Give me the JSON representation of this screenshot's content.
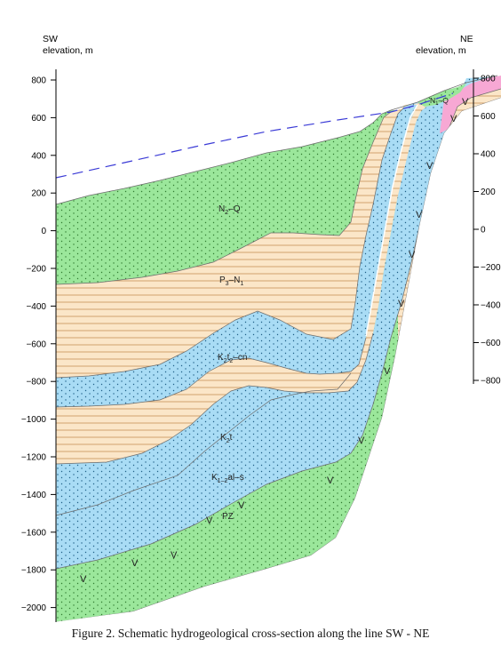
{
  "left_header": {
    "dir": "SW",
    "label": "elevation,  m"
  },
  "right_header": {
    "dir": "NE",
    "label": "elevation,  m"
  },
  "left_ticks": [
    "800",
    "600",
    "400",
    "200",
    "0",
    "−200",
    "−400",
    "−600",
    "−800",
    "−1000",
    "−1200",
    "−1400",
    "−1600",
    "−1800",
    "−2000"
  ],
  "right_ticks": [
    "800",
    "600",
    "400",
    "200",
    "0",
    "−200",
    "−400",
    "−600",
    "−800"
  ],
  "layers": [
    {
      "id": "n2q",
      "base": "N",
      "sub": "2",
      "rest": "–Q",
      "color": "#9be79b"
    },
    {
      "id": "p3n1",
      "base": "P",
      "sub": "3",
      "rest": "–N",
      "sub2": "1",
      "color": "#fbe6c8"
    },
    {
      "id": "k2t2cn",
      "base": "K",
      "sub": "2",
      "rest": "t",
      "sub2": "2",
      "rest2": "–cn",
      "color": "#a9dcf5"
    },
    {
      "id": "k2t",
      "base": "K",
      "sub": "2",
      "rest": "t",
      "color": "#fbe6c8"
    },
    {
      "id": "k12als",
      "base": "K",
      "sub": "1–2",
      "rest": "al–s",
      "color": "#a9dcf5"
    },
    {
      "id": "pz",
      "base": "PZ",
      "color": "#f7a8d4"
    },
    {
      "id": "n1q",
      "base": "N",
      "sub": "1",
      "rest": "–Q",
      "color": "#9be79b"
    }
  ],
  "basement_symbol": "V",
  "caption": "Figure 2. Schematic hydrogeological cross-section along the line SW - NE"
}
